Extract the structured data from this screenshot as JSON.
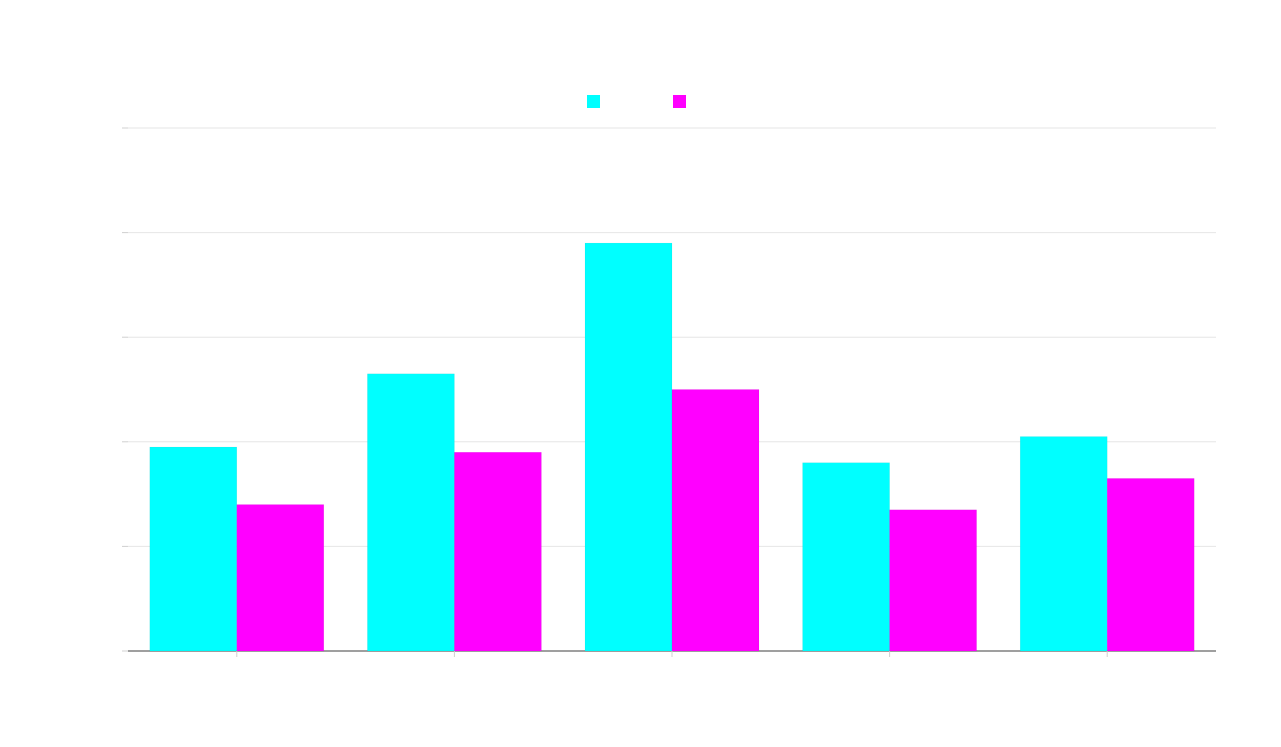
{
  "chart_data": {
    "type": "bar",
    "title": "",
    "xlabel": "",
    "ylabel": "",
    "categories": [
      "",
      "",
      "",
      "",
      ""
    ],
    "series": [
      {
        "name": "",
        "color": "#00ffff",
        "values": [
          39,
          53,
          78,
          36,
          41
        ]
      },
      {
        "name": "",
        "color": "#ff00ff",
        "values": [
          28,
          38,
          50,
          27,
          33
        ]
      }
    ],
    "ylim": [
      0,
      100
    ],
    "yticks": [
      0,
      20,
      40,
      60,
      80,
      100
    ],
    "grid": true,
    "legend_position": "top-center"
  }
}
